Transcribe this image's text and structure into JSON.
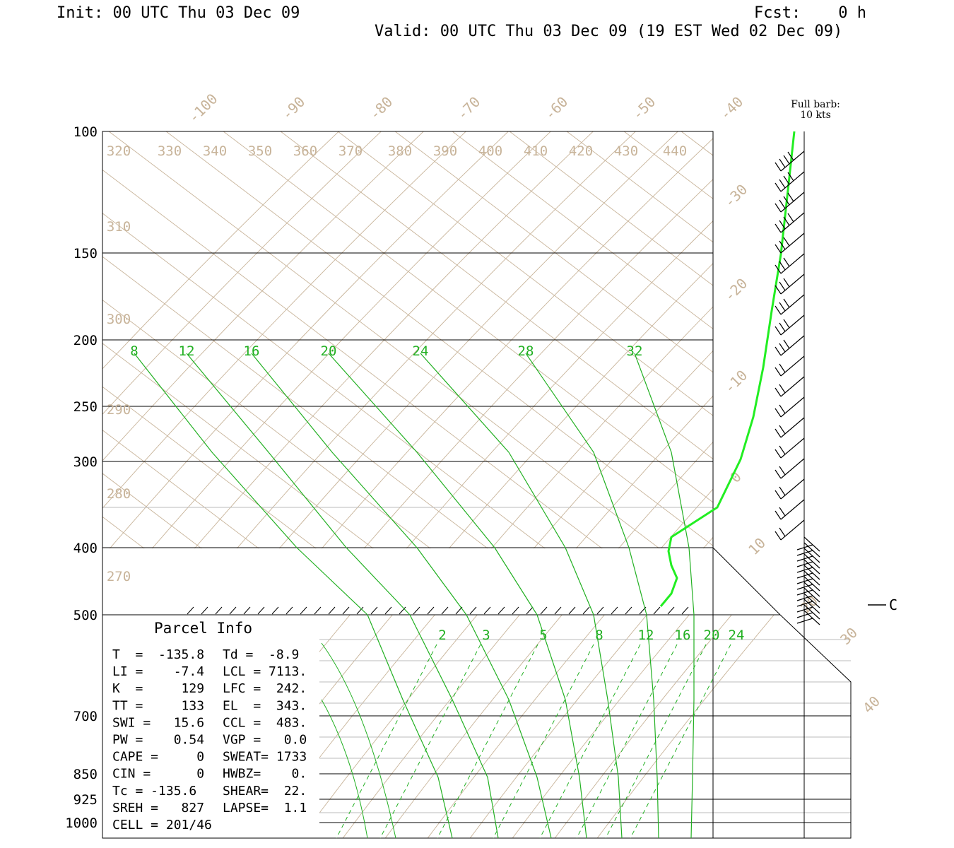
{
  "header": {
    "init": "Init: 00 UTC Thu 03 Dec 09",
    "fcst": "Fcst:    0 h",
    "valid": "Valid: 00 UTC Thu 03 Dec 09 (19 EST Wed 02 Dec 09)"
  },
  "barb_note": [
    "Full barb:",
    "10 kts"
  ],
  "unit_marker": "C",
  "chart_data": {
    "type": "line",
    "pressure_levels": [
      "100",
      "150",
      "200",
      "250",
      "300",
      "400",
      "500",
      "700",
      "850",
      "925",
      "1000"
    ],
    "isotherm_labels": [
      "-100",
      "-90",
      "-80",
      "-70",
      "-60",
      "-50",
      "-40",
      "-30",
      "-20",
      "-10",
      "0",
      "10",
      "20",
      "30",
      "40"
    ],
    "theta_labels": [
      "320",
      "330",
      "340",
      "350",
      "360",
      "370",
      "380",
      "390",
      "400",
      "410",
      "420",
      "430",
      "440",
      "310",
      "300",
      "290",
      "280",
      "270"
    ],
    "moist_adiabat_labels": [
      "8",
      "12",
      "16",
      "20",
      "24",
      "28",
      "32"
    ],
    "mixing_ratio_labels": [
      "2",
      "3",
      "5",
      "8",
      "12",
      "16",
      "20",
      "24"
    ],
    "profile_series": {
      "name": "",
      "points": [
        [
          100,
          -34
        ],
        [
          150,
          -35
        ],
        [
          200,
          -32
        ],
        [
          250,
          -25
        ],
        [
          300,
          -12
        ],
        [
          330,
          -5
        ],
        [
          400,
          -4
        ],
        [
          430,
          -6
        ],
        [
          470,
          -3
        ],
        [
          500,
          -6
        ]
      ]
    },
    "wind_barbs_note": "Full barb: 10 kts"
  },
  "parcel_info": {
    "title": "Parcel Info",
    "rows": [
      [
        "T  =  -135.8",
        "Td =  -8.9"
      ],
      [
        "LI =    -7.4",
        "LCL = 7113."
      ],
      [
        "K  =     129",
        "LFC =  242."
      ],
      [
        "TT =     133",
        "EL  =  343."
      ],
      [
        "SWI =   15.6",
        "CCL =  483."
      ],
      [
        "PW =    0.54",
        "VGP =   0.0"
      ],
      [
        "CAPE =     0",
        "SWEAT= 1733"
      ],
      [
        "CIN =      0",
        "HWBZ=    0."
      ],
      [
        "Tc = -135.6",
        "SHEAR=  22."
      ],
      [
        "SREH =   827",
        "LAPSE=  1.1"
      ],
      [
        "CELL = 201/46",
        ""
      ]
    ]
  },
  "colors": {
    "grid": "#c8b49a",
    "isobar": "#000000",
    "moist": "#22b022",
    "profile": "#22ee22",
    "barb": "#000000"
  }
}
